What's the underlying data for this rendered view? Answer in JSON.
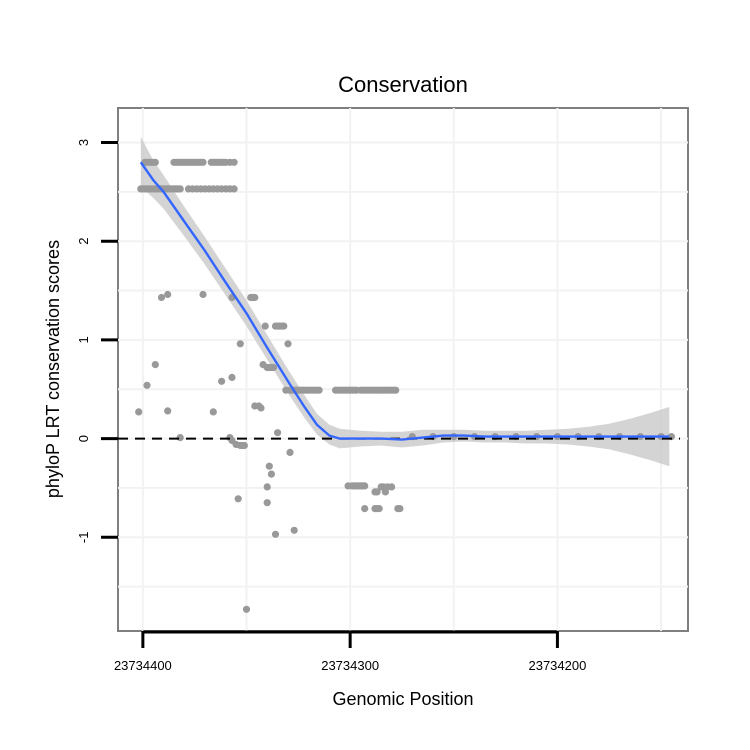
{
  "chart_data": {
    "type": "scatter",
    "title": "Conservation",
    "xlabel": "Genomic Position",
    "ylabel": "phyloP LRT conservation scores",
    "x_reversed": true,
    "xlim": [
      23734412,
      23734137
    ],
    "ylim": [
      -1.95,
      3.35
    ],
    "x_ticks": [
      23734400,
      23734300,
      23734200
    ],
    "x_tick_labels": [
      "23734400",
      "23734300",
      "23734200"
    ],
    "y_ticks": [
      -1,
      0,
      1,
      2,
      3
    ],
    "y_tick_labels": [
      "-1",
      "0",
      "1",
      "2",
      "3"
    ],
    "grid": true,
    "reference_line": {
      "y": 0,
      "style": "dashed",
      "color": "#000000"
    },
    "points_color": "#999999",
    "smooth_color": "#3366ff",
    "ribbon_color": "#cccccc",
    "points": [
      [
        23734399,
        2.8
      ],
      [
        23734398,
        2.8
      ],
      [
        23734397,
        2.8
      ],
      [
        23734396,
        2.8
      ],
      [
        23734395,
        2.8
      ],
      [
        23734394,
        2.8
      ],
      [
        23734385,
        2.8
      ],
      [
        23734384,
        2.8
      ],
      [
        23734383,
        2.8
      ],
      [
        23734382,
        2.8
      ],
      [
        23734381,
        2.8
      ],
      [
        23734380,
        2.8
      ],
      [
        23734379,
        2.8
      ],
      [
        23734378,
        2.8
      ],
      [
        23734377,
        2.8
      ],
      [
        23734376,
        2.8
      ],
      [
        23734375,
        2.8
      ],
      [
        23734374,
        2.8
      ],
      [
        23734373,
        2.8
      ],
      [
        23734372,
        2.8
      ],
      [
        23734371,
        2.8
      ],
      [
        23734367,
        2.8
      ],
      [
        23734366,
        2.8
      ],
      [
        23734365,
        2.8
      ],
      [
        23734364,
        2.8
      ],
      [
        23734363,
        2.8
      ],
      [
        23734362,
        2.8
      ],
      [
        23734361,
        2.8
      ],
      [
        23734360,
        2.8
      ],
      [
        23734358,
        2.8
      ],
      [
        23734356,
        2.8
      ],
      [
        23734401,
        2.53
      ],
      [
        23734400,
        2.53
      ],
      [
        23734399,
        2.53
      ],
      [
        23734398,
        2.53
      ],
      [
        23734397,
        2.53
      ],
      [
        23734396,
        2.53
      ],
      [
        23734395,
        2.53
      ],
      [
        23734394,
        2.53
      ],
      [
        23734393,
        2.53
      ],
      [
        23734392,
        2.53
      ],
      [
        23734391,
        2.53
      ],
      [
        23734390,
        2.53
      ],
      [
        23734389,
        2.53
      ],
      [
        23734388,
        2.53
      ],
      [
        23734387,
        2.53
      ],
      [
        23734386,
        2.53
      ],
      [
        23734385,
        2.53
      ],
      [
        23734384,
        2.53
      ],
      [
        23734383,
        2.53
      ],
      [
        23734382,
        2.53
      ],
      [
        23734378,
        2.53
      ],
      [
        23734376,
        2.53
      ],
      [
        23734374,
        2.53
      ],
      [
        23734372,
        2.53
      ],
      [
        23734370,
        2.53
      ],
      [
        23734368,
        2.53
      ],
      [
        23734366,
        2.53
      ],
      [
        23734364,
        2.53
      ],
      [
        23734362,
        2.53
      ],
      [
        23734360,
        2.53
      ],
      [
        23734358,
        2.53
      ],
      [
        23734356,
        2.53
      ],
      [
        23734391,
        1.43
      ],
      [
        23734388,
        1.46
      ],
      [
        23734371,
        1.46
      ],
      [
        23734357,
        1.43
      ],
      [
        23734348,
        1.43
      ],
      [
        23734347,
        1.43
      ],
      [
        23734346,
        1.43
      ],
      [
        23734341,
        1.14
      ],
      [
        23734336,
        1.14
      ],
      [
        23734335,
        1.14
      ],
      [
        23734334,
        1.14
      ],
      [
        23734333,
        1.14
      ],
      [
        23734332,
        1.14
      ],
      [
        23734330,
        0.96
      ],
      [
        23734353,
        0.96
      ],
      [
        23734342,
        0.75
      ],
      [
        23734340,
        0.72
      ],
      [
        23734339,
        0.72
      ],
      [
        23734338,
        0.72
      ],
      [
        23734337,
        0.72
      ],
      [
        23734394,
        0.75
      ],
      [
        23734362,
        0.58
      ],
      [
        23734357,
        0.62
      ],
      [
        23734398,
        0.54
      ],
      [
        23734331,
        0.49
      ],
      [
        23734329,
        0.49
      ],
      [
        23734328,
        0.49
      ],
      [
        23734327,
        0.49
      ],
      [
        23734326,
        0.49
      ],
      [
        23734325,
        0.49
      ],
      [
        23734324,
        0.49
      ],
      [
        23734323,
        0.49
      ],
      [
        23734322,
        0.49
      ],
      [
        23734321,
        0.49
      ],
      [
        23734320,
        0.49
      ],
      [
        23734319,
        0.49
      ],
      [
        23734318,
        0.49
      ],
      [
        23734317,
        0.49
      ],
      [
        23734316,
        0.49
      ],
      [
        23734315,
        0.49
      ],
      [
        23734307,
        0.49
      ],
      [
        23734306,
        0.49
      ],
      [
        23734305,
        0.49
      ],
      [
        23734304,
        0.49
      ],
      [
        23734303,
        0.49
      ],
      [
        23734302,
        0.49
      ],
      [
        23734301,
        0.49
      ],
      [
        23734300,
        0.49
      ],
      [
        23734299,
        0.49
      ],
      [
        23734298,
        0.49
      ],
      [
        23734297,
        0.49
      ],
      [
        23734295,
        0.49
      ],
      [
        23734294,
        0.49
      ],
      [
        23734293,
        0.49
      ],
      [
        23734292,
        0.49
      ],
      [
        23734291,
        0.49
      ],
      [
        23734290,
        0.49
      ],
      [
        23734289,
        0.49
      ],
      [
        23734288,
        0.49
      ],
      [
        23734287,
        0.49
      ],
      [
        23734286,
        0.49
      ],
      [
        23734285,
        0.49
      ],
      [
        23734284,
        0.49
      ],
      [
        23734283,
        0.49
      ],
      [
        23734282,
        0.49
      ],
      [
        23734281,
        0.49
      ],
      [
        23734280,
        0.49
      ],
      [
        23734279,
        0.49
      ],
      [
        23734278,
        0.49
      ],
      [
        23734346,
        0.33
      ],
      [
        23734344,
        0.33
      ],
      [
        23734343,
        0.31
      ],
      [
        23734402,
        0.27
      ],
      [
        23734388,
        0.28
      ],
      [
        23734366,
        0.27
      ],
      [
        23734335,
        0.06
      ],
      [
        23734382,
        0.01
      ],
      [
        23734358,
        0.01
      ],
      [
        23734357,
        -0.02
      ],
      [
        23734355,
        -0.06
      ],
      [
        23734353,
        -0.07
      ],
      [
        23734352,
        -0.07
      ],
      [
        23734351,
        -0.07
      ],
      [
        23734329,
        -0.14
      ],
      [
        23734339,
        -0.28
      ],
      [
        23734338,
        -0.36
      ],
      [
        23734301,
        -0.48
      ],
      [
        23734299,
        -0.48
      ],
      [
        23734298,
        -0.48
      ],
      [
        23734297,
        -0.48
      ],
      [
        23734296,
        -0.48
      ],
      [
        23734295,
        -0.48
      ],
      [
        23734294,
        -0.48
      ],
      [
        23734293,
        -0.48
      ],
      [
        23734340,
        -0.49
      ],
      [
        23734285,
        -0.49
      ],
      [
        23734284,
        -0.49
      ],
      [
        23734282,
        -0.49
      ],
      [
        23734280,
        -0.49
      ],
      [
        23734288,
        -0.54
      ],
      [
        23734287,
        -0.54
      ],
      [
        23734283,
        -0.54
      ],
      [
        23734354,
        -0.61
      ],
      [
        23734340,
        -0.65
      ],
      [
        23734293,
        -0.71
      ],
      [
        23734288,
        -0.71
      ],
      [
        23734287,
        -0.71
      ],
      [
        23734286,
        -0.71
      ],
      [
        23734277,
        -0.71
      ],
      [
        23734276,
        -0.71
      ],
      [
        23734327,
        -0.93
      ],
      [
        23734336,
        -0.97
      ],
      [
        23734350,
        -1.73
      ],
      [
        23734270,
        0.02
      ],
      [
        23734260,
        0.02
      ],
      [
        23734250,
        0.02
      ],
      [
        23734240,
        0.02
      ],
      [
        23734230,
        0.02
      ],
      [
        23734220,
        0.02
      ],
      [
        23734210,
        0.02
      ],
      [
        23734200,
        0.02
      ],
      [
        23734190,
        0.02
      ],
      [
        23734180,
        0.02
      ],
      [
        23734170,
        0.02
      ],
      [
        23734160,
        0.02
      ],
      [
        23734150,
        0.02
      ],
      [
        23734145,
        0.02
      ]
    ],
    "smooth_fit": [
      [
        23734401,
        2.8,
        3.06,
        2.55
      ],
      [
        23734395,
        2.62,
        2.82,
        2.44
      ],
      [
        23734390,
        2.5,
        2.67,
        2.33
      ],
      [
        23734380,
        2.2,
        2.35,
        2.05
      ],
      [
        23734370,
        1.9,
        2.04,
        1.76
      ],
      [
        23734360,
        1.58,
        1.72,
        1.45
      ],
      [
        23734350,
        1.27,
        1.4,
        1.14
      ],
      [
        23734340,
        0.92,
        1.05,
        0.8
      ],
      [
        23734330,
        0.58,
        0.7,
        0.46
      ],
      [
        23734322,
        0.32,
        0.44,
        0.21
      ],
      [
        23734316,
        0.14,
        0.25,
        0.04
      ],
      [
        23734310,
        0.03,
        0.14,
        -0.06
      ],
      [
        23734305,
        0.0,
        0.1,
        -0.1
      ],
      [
        23734295,
        0.0,
        0.08,
        -0.08
      ],
      [
        23734285,
        0.0,
        0.07,
        -0.07
      ],
      [
        23734275,
        -0.01,
        0.07,
        -0.09
      ],
      [
        23734265,
        0.01,
        0.09,
        -0.07
      ],
      [
        23734255,
        0.03,
        0.09,
        -0.04
      ],
      [
        23734245,
        0.03,
        0.09,
        -0.03
      ],
      [
        23734235,
        0.02,
        0.08,
        -0.04
      ],
      [
        23734225,
        0.02,
        0.08,
        -0.04
      ],
      [
        23734215,
        0.02,
        0.08,
        -0.05
      ],
      [
        23734205,
        0.02,
        0.09,
        -0.05
      ],
      [
        23734195,
        0.02,
        0.1,
        -0.06
      ],
      [
        23734185,
        0.02,
        0.12,
        -0.08
      ],
      [
        23734175,
        0.02,
        0.15,
        -0.11
      ],
      [
        23734165,
        0.02,
        0.2,
        -0.16
      ],
      [
        23734155,
        0.02,
        0.26,
        -0.22
      ],
      [
        23734146,
        0.02,
        0.32,
        -0.28
      ]
    ]
  }
}
